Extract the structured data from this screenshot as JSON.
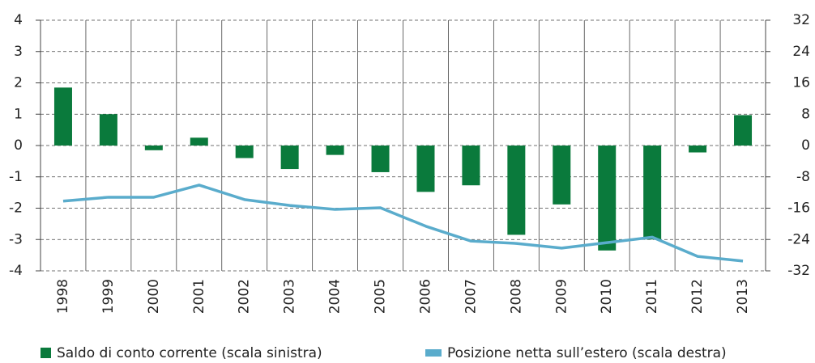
{
  "chart_data": {
    "type": "bar_line",
    "categories": [
      "1998",
      "1999",
      "2000",
      "2001",
      "2002",
      "2003",
      "2004",
      "2005",
      "2006",
      "2007",
      "2008",
      "2009",
      "2010",
      "2011",
      "2012",
      "2013"
    ],
    "series": [
      {
        "name": "Saldo di conto corrente (scala sinistra)",
        "color": "#0a7a3c",
        "type": "bar",
        "values": [
          1.85,
          1.0,
          -0.15,
          0.25,
          -0.4,
          -0.75,
          -0.3,
          -0.85,
          -1.48,
          -1.27,
          -2.85,
          -1.88,
          -3.35,
          -3.0,
          -0.22,
          0.97
        ]
      },
      {
        "name": "Posizione netta sull’estero (scala destra)",
        "color": "#5aaccc",
        "type": "line",
        "axis": "y2",
        "values": [
          -14.2,
          -13.2,
          -13.2,
          -10.1,
          -13.8,
          -15.3,
          -16.3,
          -15.9,
          -20.6,
          -24.4,
          -25.0,
          -26.2,
          -24.8,
          -23.4,
          -28.3,
          -29.5
        ]
      }
    ],
    "ylim": [
      -4,
      4
    ],
    "yticks": [
      -4,
      -3,
      -2,
      -1,
      0,
      1,
      2,
      3,
      4
    ],
    "y2lim": [
      -32,
      32
    ],
    "y2ticks": [
      -32,
      -24,
      -16,
      -8,
      0,
      8,
      16,
      24,
      32
    ],
    "grid": true
  }
}
